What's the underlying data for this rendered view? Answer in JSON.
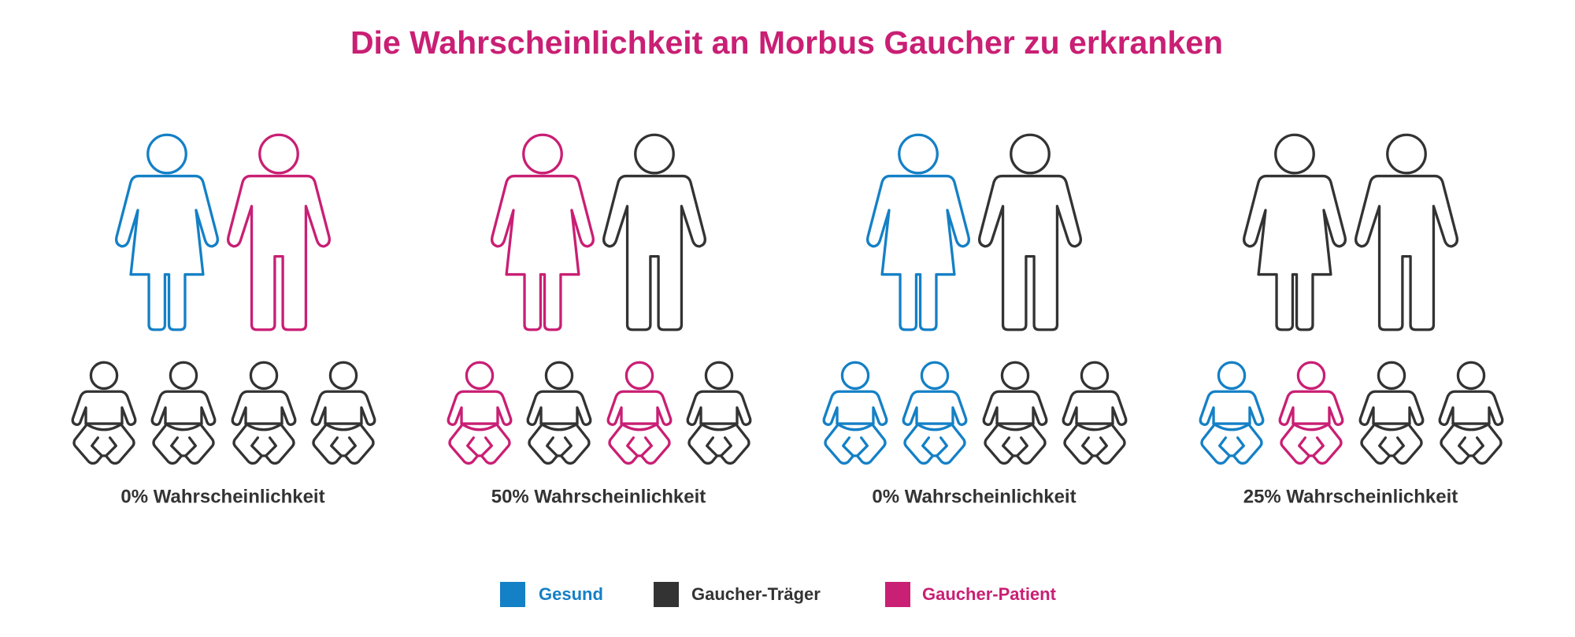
{
  "title": "Die Wahrscheinlichkeit an Morbus Gaucher zu erkranken",
  "groups": [
    {
      "mother": "#1480c6",
      "father": "#c91f74",
      "children": [
        "#333333",
        "#333333",
        "#333333",
        "#333333"
      ],
      "label": "0% Wahrscheinlichkeit"
    },
    {
      "mother": "#c91f74",
      "father": "#333333",
      "children": [
        "#c91f74",
        "#333333",
        "#c91f74",
        "#333333"
      ],
      "label": "50% Wahrscheinlichkeit"
    },
    {
      "mother": "#1480c6",
      "father": "#333333",
      "children": [
        "#1480c6",
        "#1480c6",
        "#333333",
        "#333333"
      ],
      "label": "0% Wahrscheinlichkeit"
    },
    {
      "mother": "#333333",
      "father": "#333333",
      "children": [
        "#1480c6",
        "#c91f74",
        "#333333",
        "#333333"
      ],
      "label": "25% Wahrscheinlichkeit"
    }
  ],
  "legend": [
    {
      "name": "Gesund",
      "color": "#1480c6"
    },
    {
      "name": "Gaucher-Träger",
      "color": "#333333"
    },
    {
      "name": "Gaucher-Patient",
      "color": "#c91f74"
    }
  ]
}
